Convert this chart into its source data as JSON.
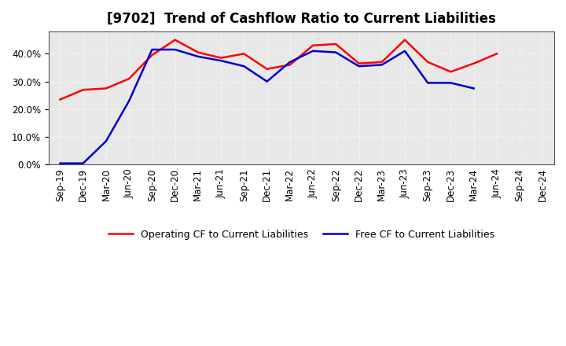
{
  "title": "[9702]  Trend of Cashflow Ratio to Current Liabilities",
  "x_labels": [
    "Sep-19",
    "Dec-19",
    "Mar-20",
    "Jun-20",
    "Sep-20",
    "Dec-20",
    "Mar-21",
    "Jun-21",
    "Sep-21",
    "Dec-21",
    "Mar-22",
    "Jun-22",
    "Sep-22",
    "Dec-22",
    "Mar-23",
    "Jun-23",
    "Sep-23",
    "Dec-23",
    "Mar-24",
    "Jun-24",
    "Sep-24",
    "Dec-24"
  ],
  "operating_cf": [
    0.235,
    0.27,
    0.275,
    0.31,
    0.395,
    0.45,
    0.405,
    0.385,
    0.4,
    0.345,
    0.36,
    0.43,
    0.435,
    0.365,
    0.37,
    0.45,
    0.37,
    0.335,
    0.365,
    0.4,
    null,
    null
  ],
  "free_cf": [
    0.005,
    0.005,
    0.085,
    0.23,
    0.415,
    0.415,
    0.39,
    0.375,
    0.355,
    0.3,
    0.37,
    0.41,
    0.405,
    0.355,
    0.36,
    0.41,
    0.295,
    0.295,
    0.275,
    null,
    null,
    null
  ],
  "operating_color": "#ff0000",
  "free_color": "#0000cc",
  "background_color": "#ffffff",
  "plot_bg_color": "#e8e8e8",
  "grid_color": "#ffffff",
  "ylim": [
    0.0,
    0.48
  ],
  "yticks": [
    0.0,
    0.1,
    0.2,
    0.3,
    0.4
  ],
  "legend_labels": [
    "Operating CF to Current Liabilities",
    "Free CF to Current Liabilities"
  ],
  "title_fontsize": 12,
  "axis_fontsize": 8.5
}
